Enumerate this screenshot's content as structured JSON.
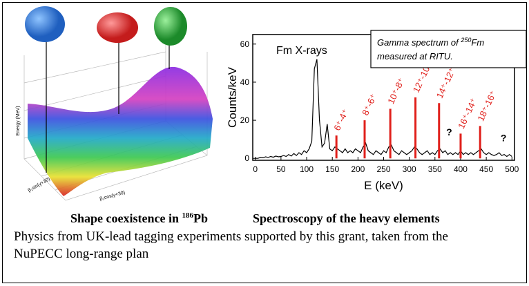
{
  "chart_data": {
    "type": "spectrum",
    "annotation_box": {
      "prefix": "Gamma spectrum of ",
      "superscript": "250",
      "element": "Fm",
      "line2": "measured at RITU."
    },
    "annotations": [
      "Fm X-rays",
      "?",
      "?"
    ],
    "xlabel": "E (keV)",
    "ylabel": "Counts/keV",
    "xlim": [
      -5,
      505
    ],
    "ylim": [
      -1,
      65
    ],
    "xticks": [
      0,
      50,
      100,
      150,
      200,
      250,
      300,
      350,
      400,
      450,
      500
    ],
    "yticks": [
      0,
      20,
      40,
      60
    ],
    "spectrum": {
      "color": "#000000",
      "x": [
        0,
        5,
        10,
        15,
        20,
        25,
        30,
        35,
        40,
        45,
        50,
        55,
        60,
        65,
        70,
        75,
        80,
        85,
        90,
        95,
        100,
        105,
        110,
        115,
        120,
        125,
        130,
        135,
        140,
        145,
        150,
        155,
        160,
        165,
        170,
        175,
        180,
        185,
        190,
        195,
        200,
        205,
        210,
        215,
        220,
        225,
        230,
        235,
        240,
        245,
        250,
        255,
        260,
        265,
        270,
        275,
        280,
        285,
        290,
        295,
        300,
        305,
        310,
        315,
        320,
        325,
        330,
        335,
        340,
        345,
        350,
        355,
        360,
        365,
        370,
        375,
        380,
        385,
        390,
        395,
        400,
        405,
        410,
        415,
        420,
        425,
        430,
        435,
        440,
        445,
        450,
        455,
        460,
        465,
        470,
        475,
        480,
        485,
        490,
        495,
        500
      ],
      "values": [
        0,
        0,
        0.5,
        0.3,
        0.8,
        0.5,
        1,
        0.6,
        1.2,
        0.8,
        1,
        1.5,
        1,
        2,
        1.2,
        2.5,
        1.5,
        3,
        2,
        4,
        3,
        5,
        9,
        47,
        52,
        20,
        6,
        8,
        18,
        5,
        4,
        6,
        5,
        4,
        3,
        5,
        3,
        4,
        3,
        5,
        4,
        3,
        6,
        8,
        4,
        3,
        2,
        4,
        3,
        2,
        4,
        3,
        6,
        7,
        4,
        3,
        2,
        4,
        3,
        2,
        3,
        4,
        6,
        5,
        3,
        2,
        3,
        4,
        2,
        3,
        2,
        4,
        5,
        3,
        4,
        2,
        3,
        2,
        3,
        2,
        4,
        2,
        3,
        2,
        3,
        2,
        3,
        4,
        5,
        3,
        2,
        3,
        2,
        1.5,
        2,
        3,
        1.5,
        2,
        1,
        2,
        1
      ]
    },
    "peaks": {
      "color": "#e0201b",
      "x": [
        158,
        213,
        263,
        312,
        358,
        400,
        438
      ],
      "values": [
        12,
        20,
        26,
        32,
        29,
        13,
        17
      ],
      "labels": [
        "6⁺-4⁺",
        "8⁺-6⁺",
        "10⁺-8⁺",
        "12⁺-10⁺",
        "14⁺-12⁺",
        "16⁺-14⁺",
        "18⁺-16⁺"
      ]
    }
  },
  "left_figure": {
    "zlabel": "Energy (MeV)",
    "xlabel": "β₂sin(γ+30)",
    "ylabel": "β₂cos(γ+30)"
  },
  "captions": {
    "left": {
      "text": "Shape coexistence in ",
      "superscript": "186",
      "element": "Pb"
    },
    "right": "Spectroscopy of the heavy elements",
    "body": "Physics from UK-lead tagging experiments supported by this grant, taken from the NuPECC long-range plan"
  }
}
